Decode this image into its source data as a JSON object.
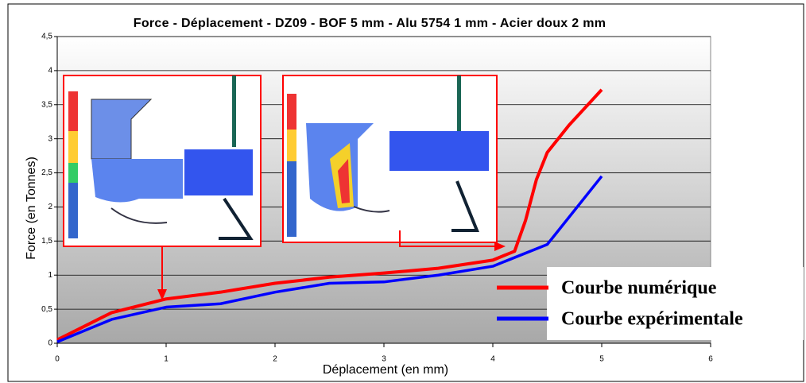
{
  "chart_data": {
    "type": "line",
    "title": "Force - Déplacement - DZ09 - BOF 5 mm - Alu 5754 1 mm - Acier doux 2 mm",
    "x_label": "Déplacement (en mm)",
    "y_label": "Force (en Tonnes)",
    "xlim": [
      0,
      6
    ],
    "xticks": [
      0,
      1,
      2,
      3,
      4,
      5,
      6
    ],
    "ylim": [
      0,
      4.5
    ],
    "yticks": [
      0,
      {
        "value": 0.5,
        "label": "0,5"
      },
      1,
      {
        "value": 1.5,
        "label": "1,5"
      },
      2,
      {
        "value": 2.5,
        "label": "2,5"
      },
      3,
      {
        "value": 3.5,
        "label": "3,5"
      },
      4,
      {
        "value": 4.5,
        "label": "4,5"
      }
    ],
    "grid": true,
    "legend": "lower right",
    "series": [
      {
        "name": "Courbe numérique",
        "color": "#ff0000",
        "x": [
          0,
          0.25,
          0.5,
          1,
          1.5,
          2,
          2.5,
          3,
          3.5,
          4,
          4.2,
          4.3,
          4.4,
          4.5,
          4.7,
          5
        ],
        "values": [
          0.05,
          0.25,
          0.45,
          0.65,
          0.75,
          0.88,
          0.97,
          1.03,
          1.1,
          1.22,
          1.35,
          1.8,
          2.4,
          2.8,
          3.2,
          3.72
        ]
      },
      {
        "name": "Courbe expérimentale",
        "color": "#0000ff",
        "x": [
          0,
          0.5,
          1,
          1.5,
          2,
          2.5,
          3,
          3.5,
          4,
          4.5,
          5
        ],
        "values": [
          0.02,
          0.35,
          0.53,
          0.58,
          0.75,
          0.88,
          0.9,
          1.0,
          1.13,
          1.45,
          2.45
        ]
      }
    ]
  }
}
